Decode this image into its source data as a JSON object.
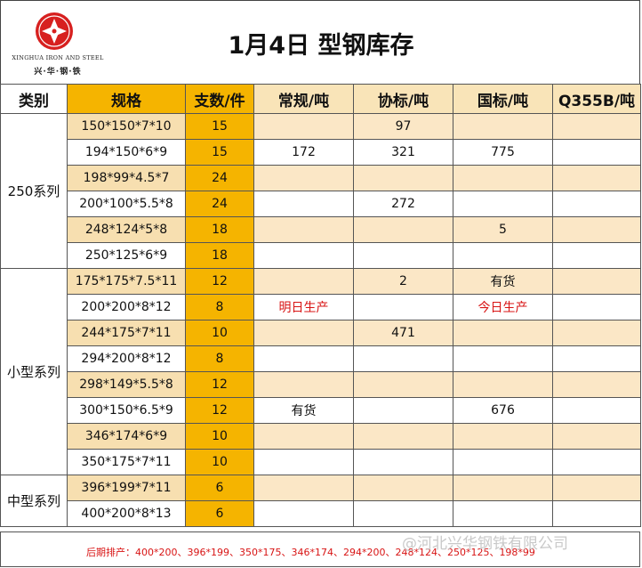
{
  "header": {
    "logo_en": "XINGHUA IRON AND STEEL",
    "logo_cn": "兴·华·钢·铁",
    "title": "1月4日 型钢库存"
  },
  "columns": [
    "类别",
    "规格",
    "支数/件",
    "常规/吨",
    "协标/吨",
    "国标/吨",
    "Q355B/吨"
  ],
  "groups": [
    {
      "name": "250系列",
      "rows": [
        {
          "spec": "150*150*7*10",
          "count": "15",
          "regular": "",
          "assoc": "97",
          "national": "",
          "q355b": ""
        },
        {
          "spec": "194*150*6*9",
          "count": "15",
          "regular": "172",
          "assoc": "321",
          "national": "775",
          "q355b": ""
        },
        {
          "spec": "198*99*4.5*7",
          "count": "24",
          "regular": "",
          "assoc": "",
          "national": "",
          "q355b": ""
        },
        {
          "spec": "200*100*5.5*8",
          "count": "24",
          "regular": "",
          "assoc": "272",
          "national": "",
          "q355b": ""
        },
        {
          "spec": "248*124*5*8",
          "count": "18",
          "regular": "",
          "assoc": "",
          "national": "5",
          "q355b": ""
        },
        {
          "spec": "250*125*6*9",
          "count": "18",
          "regular": "",
          "assoc": "",
          "national": "",
          "q355b": ""
        }
      ]
    },
    {
      "name": "小型系列",
      "rows": [
        {
          "spec": "175*175*7.5*11",
          "count": "12",
          "regular": "",
          "assoc": "2",
          "national": "有货",
          "q355b": ""
        },
        {
          "spec": "200*200*8*12",
          "count": "8",
          "regular": "明日生产",
          "assoc": "",
          "national": "今日生产",
          "q355b": ""
        },
        {
          "spec": "244*175*7*11",
          "count": "10",
          "regular": "",
          "assoc": "471",
          "national": "",
          "q355b": ""
        },
        {
          "spec": "294*200*8*12",
          "count": "8",
          "regular": "",
          "assoc": "",
          "national": "",
          "q355b": ""
        },
        {
          "spec": "298*149*5.5*8",
          "count": "12",
          "regular": "",
          "assoc": "",
          "national": "",
          "q355b": ""
        },
        {
          "spec": "300*150*6.5*9",
          "count": "12",
          "regular": "有货",
          "assoc": "",
          "national": "676",
          "q355b": ""
        },
        {
          "spec": "346*174*6*9",
          "count": "10",
          "regular": "",
          "assoc": "",
          "national": "",
          "q355b": ""
        },
        {
          "spec": "350*175*7*11",
          "count": "10",
          "regular": "",
          "assoc": "",
          "national": "",
          "q355b": ""
        }
      ]
    },
    {
      "name": "中型系列",
      "rows": [
        {
          "spec": "396*199*7*11",
          "count": "6",
          "regular": "",
          "assoc": "",
          "national": "",
          "q355b": ""
        },
        {
          "spec": "400*200*8*13",
          "count": "6",
          "regular": "",
          "assoc": "",
          "national": "",
          "q355b": ""
        }
      ]
    }
  ],
  "footer": {
    "schedule": "后期排产：400*200、396*199、350*175、346*174、294*200、248*124、250*125、198*99",
    "watermark": "@河北兴华钢铁有限公司"
  },
  "colors": {
    "accent": "#f5b400",
    "pale": "#fbe7c6",
    "spec_pale": "#f7dfb0",
    "red": "#d81414",
    "logo_red": "#d7201f"
  }
}
